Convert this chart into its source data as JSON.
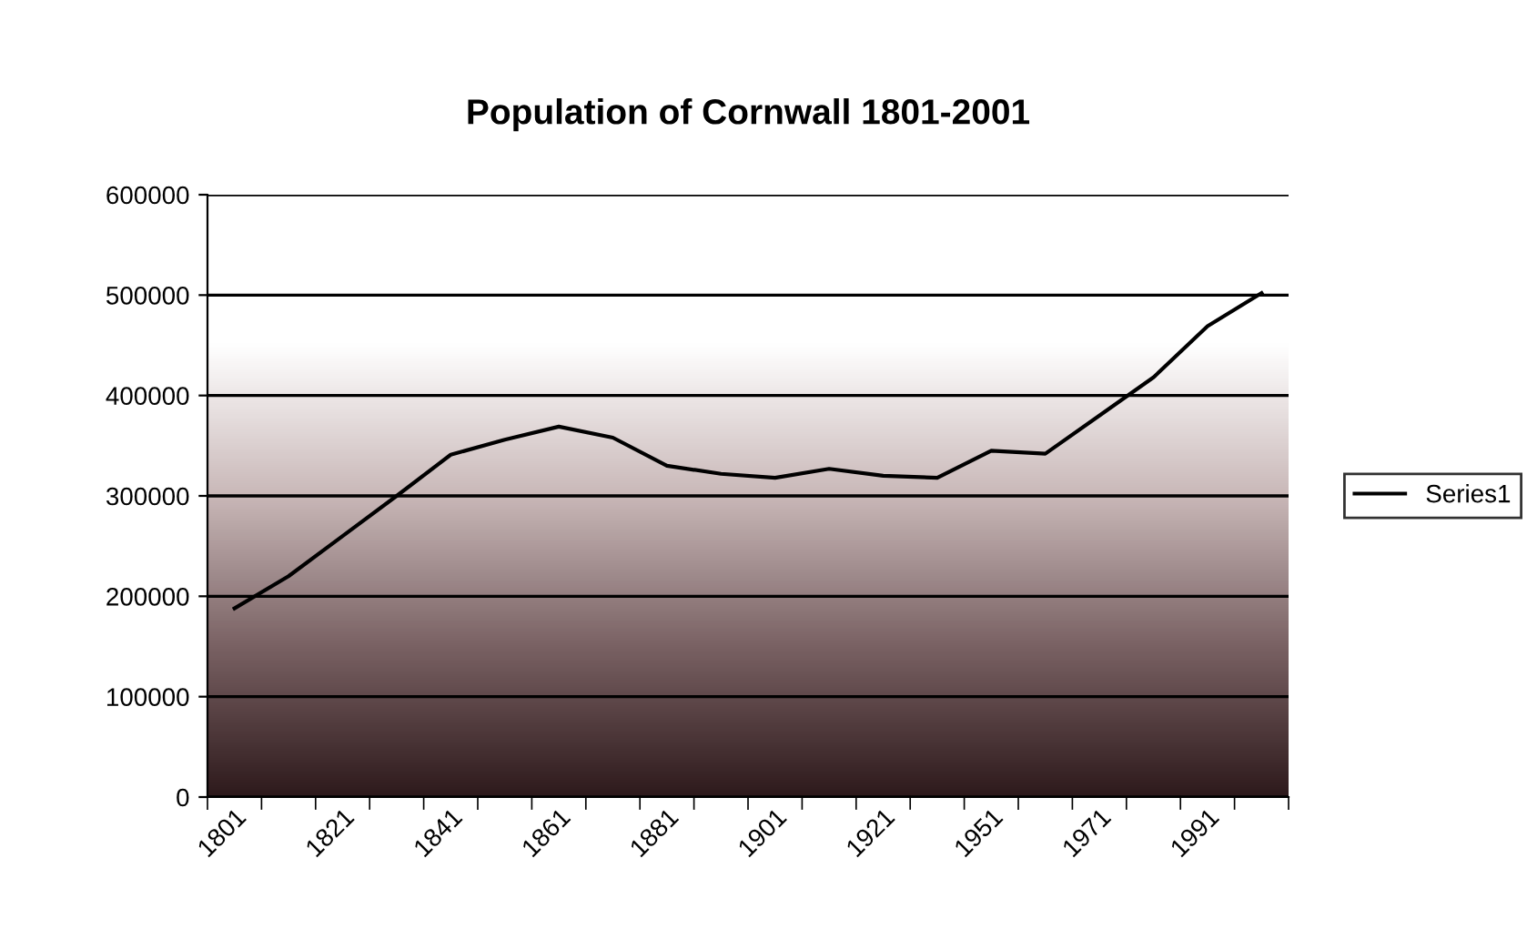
{
  "chart_data": {
    "type": "line",
    "title": "Population of Cornwall 1801-2001",
    "categories": [
      "1801",
      null,
      "1821",
      null,
      "1841",
      null,
      "1861",
      null,
      "1881",
      null,
      "1901",
      null,
      "1921",
      null,
      "1951",
      null,
      "1971",
      null,
      "1991",
      null
    ],
    "series": [
      {
        "name": "Series1",
        "color": "#000000",
        "values": [
          188000,
          220000,
          260000,
          300000,
          341000,
          356000,
          369000,
          358000,
          330000,
          322000,
          318000,
          327000,
          320000,
          318000,
          345000,
          342000,
          380000,
          418000,
          469000,
          502000
        ]
      }
    ],
    "ylim": [
      0,
      600000
    ],
    "yticks": [
      0,
      100000,
      200000,
      300000,
      400000,
      500000,
      600000
    ],
    "grid": "y",
    "legend": "right",
    "marker": "none",
    "line_style": "solid"
  }
}
